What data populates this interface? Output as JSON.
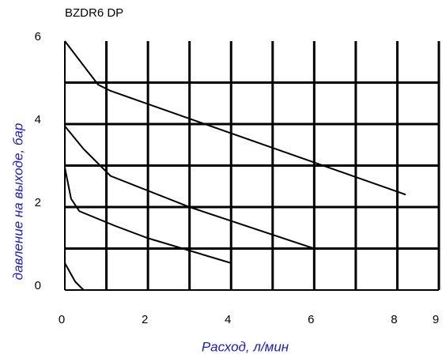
{
  "chart_data": {
    "type": "line",
    "title": "BZDR6 DP",
    "xlabel": "Расход, л/мин",
    "ylabel": "давление на выходе, бар",
    "xlim": [
      0,
      9
    ],
    "ylim": [
      0,
      6
    ],
    "xticks": [
      0,
      2,
      4,
      6,
      8,
      9
    ],
    "yticks": [
      0,
      2,
      4,
      6
    ],
    "xgrid": [
      1,
      2,
      3,
      4,
      5,
      6,
      7,
      8,
      9
    ],
    "ygrid": [
      1,
      2,
      3,
      4,
      5
    ],
    "grid": true,
    "color": "#000000",
    "series": [
      {
        "x": [
          0,
          0.8,
          1.1,
          8.2
        ],
        "values": [
          6,
          4.95,
          4.8,
          2.3
        ]
      },
      {
        "x": [
          0,
          0.45,
          1.1,
          3,
          6
        ],
        "values": [
          3.95,
          3.4,
          2.75,
          2.0,
          1.0
        ]
      },
      {
        "x": [
          0,
          0.15,
          0.35,
          1.2,
          2,
          4
        ],
        "values": [
          2.95,
          2.2,
          1.9,
          1.55,
          1.25,
          0.65
        ]
      },
      {
        "x": [
          0,
          0.25,
          0.45
        ],
        "values": [
          0.65,
          0.2,
          0
        ]
      }
    ]
  }
}
